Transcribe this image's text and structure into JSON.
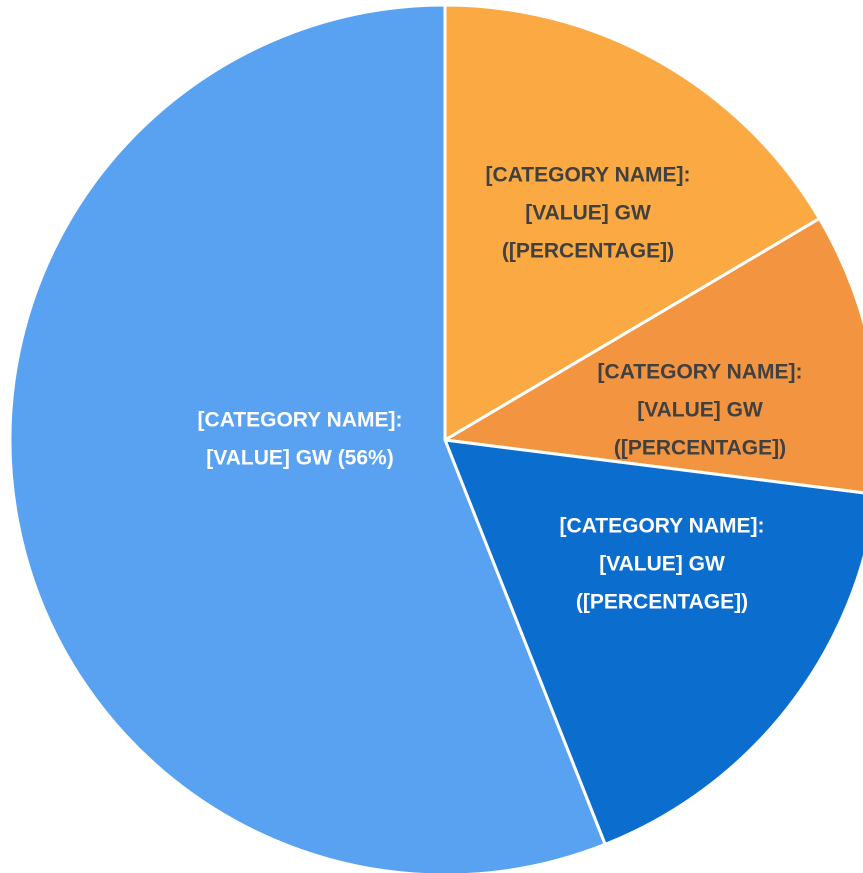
{
  "chart_data": {
    "type": "pie",
    "values": [
      16.5,
      10.5,
      17,
      56
    ],
    "colors": [
      "#fba943",
      "#f29440",
      "#0b6ecf",
      "#59a2f2"
    ],
    "label_colors": [
      "#404040",
      "#404040",
      "#ffffff",
      "#ffffff"
    ],
    "labels": [
      [
        "[CATEGORY NAME]:",
        "[VALUE] GW",
        "([PERCENTAGE])"
      ],
      [
        "[CATEGORY NAME]:",
        "[VALUE] GW",
        "([PERCENTAGE])"
      ],
      [
        "[CATEGORY NAME]:",
        "[VALUE] GW",
        "([PERCENTAGE])"
      ],
      [
        "[CATEGORY NAME]:",
        "[VALUE] GW (56%)"
      ]
    ]
  }
}
